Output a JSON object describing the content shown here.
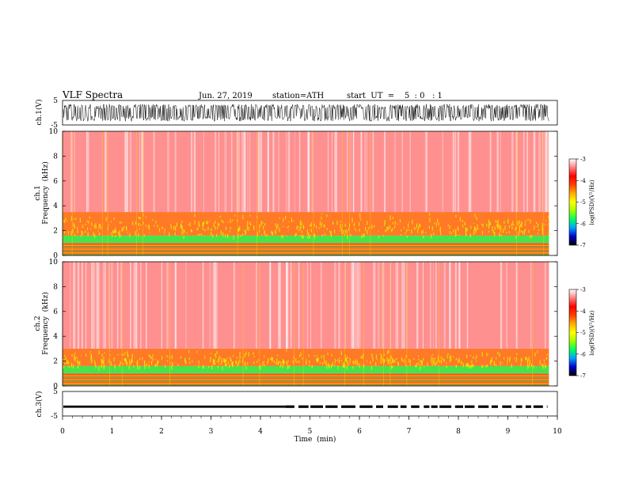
{
  "header": {
    "title": "VLF  Spectra",
    "date": "Jun. 27, 2019",
    "station": "station=ATH",
    "start": "start  UT  =    5  : 0   : 1"
  },
  "chart_data": [
    {
      "type": "line",
      "name": "ch1-waveform",
      "ylabel": "ch.1(V)",
      "ylim": [
        -5,
        5
      ],
      "yticks": [
        "5",
        "-5"
      ],
      "xlim": [
        0,
        10
      ],
      "data_end_min": 9.83,
      "amplitude_V": [
        -3.5,
        3.5
      ]
    },
    {
      "type": "heatmap",
      "name": "ch1-spectrogram",
      "ylabel": "ch.1",
      "ylabel2": "Frequency  (kHz)",
      "ylim": [
        0,
        10
      ],
      "yticks": [
        "0",
        "2",
        "4",
        "6",
        "8",
        "10"
      ],
      "xlim": [
        0,
        10
      ],
      "data_end_min": 9.83,
      "bands_kHz": [
        {
          "from": 0,
          "to": 1.0,
          "level": "red-orange"
        },
        {
          "from": 1.0,
          "to": 1.6,
          "level": "green"
        },
        {
          "from": 1.6,
          "to": 3.5,
          "level": "yellow-red"
        },
        {
          "from": 3.5,
          "to": 10,
          "level": "red-white"
        }
      ]
    },
    {
      "type": "heatmap",
      "name": "ch2-spectrogram",
      "ylabel": "ch.2",
      "ylabel2": "Frequency  (kHz)",
      "ylim": [
        0,
        10
      ],
      "yticks": [
        "0",
        "2",
        "4",
        "6",
        "8",
        "10"
      ],
      "xlim": [
        0,
        10
      ],
      "data_end_min": 9.83,
      "bands_kHz": [
        {
          "from": 0,
          "to": 1.0,
          "level": "red-orange"
        },
        {
          "from": 1.0,
          "to": 1.6,
          "level": "green"
        },
        {
          "from": 1.6,
          "to": 3.0,
          "level": "yellow-red"
        },
        {
          "from": 3.0,
          "to": 10,
          "level": "red-white"
        }
      ]
    },
    {
      "type": "line",
      "name": "ch3-waveform",
      "ylabel": "ch.3(V)",
      "ylim": [
        -5,
        5
      ],
      "yticks": [
        "5",
        "-5"
      ],
      "xlim": [
        0,
        10
      ],
      "xlabel": "Time  (min)",
      "xticks": [
        "0",
        "1",
        "2",
        "3",
        "4",
        "5",
        "6",
        "7",
        "8",
        "9",
        "10"
      ],
      "data_end_min": 9.8,
      "level_V": -1.2,
      "gaps_from_min": 4.5
    }
  ],
  "colorbar": {
    "label": "log(PSD)(V²/Hz)",
    "range": [
      -7,
      -3
    ],
    "ticks": [
      "-3",
      "-4",
      "-5",
      "-6",
      "-7"
    ],
    "colors": [
      "#000000",
      "#0000c8",
      "#00a0ff",
      "#00ff60",
      "#a0ff00",
      "#ffff00",
      "#ffb000",
      "#ff4000",
      "#ff0000",
      "#ff8080",
      "#ffffff"
    ]
  }
}
